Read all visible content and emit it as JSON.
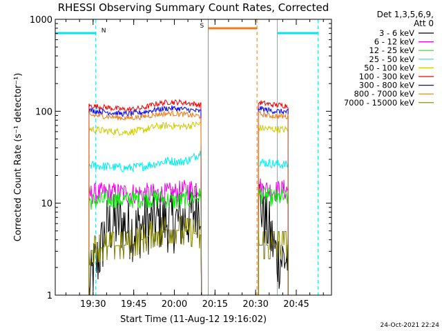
{
  "colors": {
    "night_marker": "#00e5ee",
    "saa_marker": "#ee7a16",
    "axes": "#000000",
    "background": "#ffffff"
  },
  "chart_data": {
    "type": "line",
    "title": "RHESSI Observing Summary Count Rates, Corrected",
    "xlabel": "Start Time (11-Aug-12 19:16:02)",
    "ylabel": "Corrected Count Rate (s⁻¹ detector⁻¹)",
    "y_scale": "log",
    "ylim": [
      1,
      1000
    ],
    "xlim": [
      "19:16:02",
      "20:58:00"
    ],
    "x_ticks": [
      "19:30",
      "19:45",
      "20:00",
      "20:15",
      "20:30",
      "20:45"
    ],
    "y_ticks": [
      "1",
      "10",
      "100",
      "1000"
    ],
    "grid": false,
    "legend_position": "outside-right",
    "legend_header": [
      "Det 1,3,5,6,9,",
      "Att 0"
    ],
    "footer_date": "24-Oct-2021 22:24",
    "markers": [
      {
        "label": "N",
        "type": "night",
        "start": "19:16:02",
        "end": "19:31:00",
        "color": "#00e5ee"
      },
      {
        "label": "",
        "type": "night",
        "start": "20:38:00",
        "end": "20:53:00",
        "color": "#00e5ee"
      },
      {
        "label": "S",
        "type": "saa",
        "start": "20:12:30",
        "end": "20:30:30",
        "color": "#ee7a16"
      }
    ],
    "series": [
      {
        "name": "3 - 6 keV",
        "color": "#000000",
        "points": [
          [
            "19:28:30",
            1
          ],
          [
            "19:30",
            1.9
          ],
          [
            "19:32",
            2.5
          ],
          [
            "19:35",
            5.5
          ],
          [
            "19:40",
            6.2
          ],
          [
            "19:45",
            5.0
          ],
          [
            "19:50",
            6.0
          ],
          [
            "19:55",
            6.5
          ],
          [
            "20:00",
            6.3
          ],
          [
            "20:05",
            6.8
          ],
          [
            "20:10",
            10.5
          ],
          [
            "20:30",
            null
          ],
          [
            "20:31",
            11.0
          ],
          [
            "20:33",
            7.5
          ],
          [
            "20:35",
            5.0
          ],
          [
            "20:38",
            2.5
          ],
          [
            "20:42",
            2.5
          ]
        ]
      },
      {
        "name": "6 - 12 keV",
        "color": "#ee00ee",
        "points": [
          [
            "19:28:30",
            12.5
          ],
          [
            "19:35",
            13.0
          ],
          [
            "19:45",
            12.8
          ],
          [
            "19:55",
            12.5
          ],
          [
            "20:00",
            13.0
          ],
          [
            "20:05",
            14.0
          ],
          [
            "20:10",
            15.0
          ],
          [
            "20:30",
            null
          ],
          [
            "20:31",
            15.0
          ],
          [
            "20:36",
            13.5
          ],
          [
            "20:42",
            14.0
          ]
        ]
      },
      {
        "name": "12 - 25 keV",
        "color": "#00ee00",
        "points": [
          [
            "19:28:30",
            10.5
          ],
          [
            "19:35",
            10.8
          ],
          [
            "19:45",
            11.0
          ],
          [
            "19:55",
            11.2
          ],
          [
            "20:00",
            10.5
          ],
          [
            "20:05",
            11.0
          ],
          [
            "20:10",
            12.0
          ],
          [
            "20:30",
            null
          ],
          [
            "20:31",
            12.5
          ],
          [
            "20:36",
            11.5
          ],
          [
            "20:42",
            11.5
          ]
        ]
      },
      {
        "name": "25 - 50 keV",
        "color": "#00eeee",
        "points": [
          [
            "19:28:30",
            26
          ],
          [
            "19:35",
            25
          ],
          [
            "19:42",
            24
          ],
          [
            "19:48",
            25
          ],
          [
            "19:53",
            27
          ],
          [
            "19:58",
            29
          ],
          [
            "20:02",
            28
          ],
          [
            "20:06",
            30
          ],
          [
            "20:10",
            36
          ],
          [
            "20:30",
            null
          ],
          [
            "20:31",
            28
          ],
          [
            "20:36",
            27
          ],
          [
            "20:42",
            26
          ]
        ]
      },
      {
        "name": "50 - 100 keV",
        "color": "#cdcd00",
        "points": [
          [
            "19:28:30",
            64
          ],
          [
            "19:35",
            61
          ],
          [
            "19:42",
            59
          ],
          [
            "19:48",
            62
          ],
          [
            "19:53",
            68
          ],
          [
            "19:58",
            70
          ],
          [
            "20:03",
            68
          ],
          [
            "20:10",
            73
          ],
          [
            "20:30",
            null
          ],
          [
            "20:31",
            66
          ],
          [
            "20:36",
            64
          ],
          [
            "20:42",
            63
          ]
        ]
      },
      {
        "name": "100 - 300 keV",
        "color": "#ee0000",
        "points": [
          [
            "19:28:30",
            115
          ],
          [
            "19:35",
            110
          ],
          [
            "19:42",
            104
          ],
          [
            "19:48",
            108
          ],
          [
            "19:53",
            120
          ],
          [
            "19:58",
            126
          ],
          [
            "20:03",
            125
          ],
          [
            "20:10",
            117
          ],
          [
            "20:30",
            null
          ],
          [
            "20:31",
            125
          ],
          [
            "20:36",
            118
          ],
          [
            "20:42",
            115
          ]
        ]
      },
      {
        "name": "300 - 800 keV",
        "color": "#0000ee",
        "points": [
          [
            "19:28:30",
            102
          ],
          [
            "19:35",
            98
          ],
          [
            "19:42",
            93
          ],
          [
            "19:48",
            97
          ],
          [
            "19:53",
            104
          ],
          [
            "19:58",
            108
          ],
          [
            "20:03",
            106
          ],
          [
            "20:10",
            99
          ],
          [
            "20:30",
            null
          ],
          [
            "20:31",
            108
          ],
          [
            "20:36",
            101
          ],
          [
            "20:42",
            98
          ]
        ]
      },
      {
        "name": "800 - 7000 keV",
        "color": "#ee7a16",
        "points": [
          [
            "19:28:30",
            91
          ],
          [
            "19:35",
            88
          ],
          [
            "19:42",
            84
          ],
          [
            "19:48",
            87
          ],
          [
            "19:53",
            92
          ],
          [
            "19:58",
            95
          ],
          [
            "20:03",
            93
          ],
          [
            "20:10",
            88
          ],
          [
            "20:30",
            null
          ],
          [
            "20:31",
            94
          ],
          [
            "20:36",
            89
          ],
          [
            "20:42",
            87
          ]
        ]
      },
      {
        "name": "7000 - 15000 keV",
        "color": "#808000",
        "points": [
          [
            "19:28:30",
            3.0
          ],
          [
            "19:35",
            3.4
          ],
          [
            "19:42",
            3.5
          ],
          [
            "19:48",
            4.0
          ],
          [
            "19:53",
            4.8
          ],
          [
            "19:58",
            5.2
          ],
          [
            "20:03",
            5.0
          ],
          [
            "20:10",
            4.5
          ],
          [
            "20:30",
            null
          ],
          [
            "20:31",
            3.5
          ],
          [
            "20:36",
            3.5
          ],
          [
            "20:42",
            3.5
          ]
        ]
      }
    ]
  }
}
